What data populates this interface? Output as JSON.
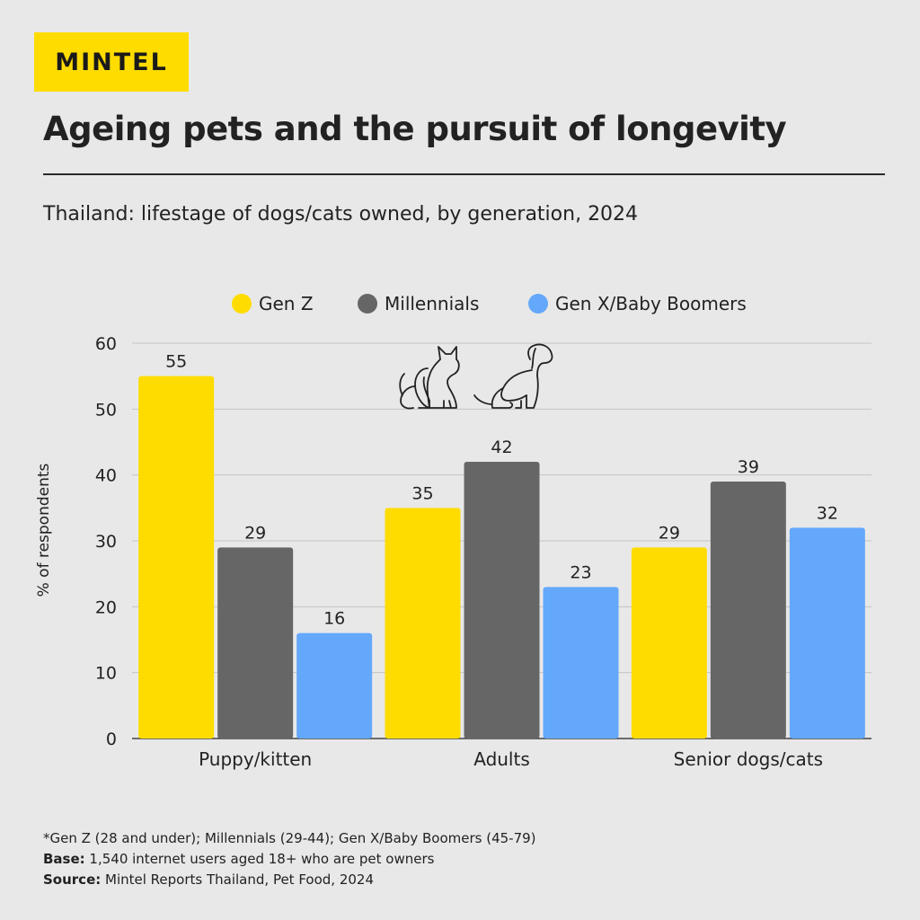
{
  "brand": {
    "logo_text": "MINTEL"
  },
  "header": {
    "title": "Ageing pets and the pursuit of longevity",
    "subtitle": "Thailand: lifestage of dogs/cats owned, by generation, 2024"
  },
  "colors": {
    "accent": "#ffdc00",
    "gen_z": "#ffdc00",
    "millennials": "#666666",
    "gen_x": "#64a8fb",
    "background": "#e8e8e8"
  },
  "icons": [
    "cat-icon",
    "dog-icon"
  ],
  "chart_data": {
    "type": "bar",
    "title": "",
    "xlabel": "",
    "ylabel": "% of respondents",
    "ylim": [
      0,
      60
    ],
    "yticks": [
      0,
      10,
      20,
      30,
      40,
      50,
      60
    ],
    "grid": true,
    "legend_position": "top",
    "categories": [
      "Puppy/kitten",
      "Adults",
      "Senior dogs/cats"
    ],
    "series": [
      {
        "name": "Gen Z",
        "values": [
          55,
          35,
          29
        ],
        "color": "#ffdc00"
      },
      {
        "name": "Millennials",
        "values": [
          29,
          42,
          39
        ],
        "color": "#666666"
      },
      {
        "name": "Gen X/Baby Boomers",
        "values": [
          16,
          23,
          32
        ],
        "color": "#64a8fb"
      }
    ]
  },
  "footnotes": {
    "definition": "*Gen Z (28 and under); Millennials (29-44); Gen X/Baby Boomers (45-79)",
    "base_label": "Base:",
    "base_text": " 1,540 internet users aged 18+ who are pet owners",
    "source_label": "Source:",
    "source_text": " Mintel Reports Thailand, Pet Food, 2024"
  }
}
